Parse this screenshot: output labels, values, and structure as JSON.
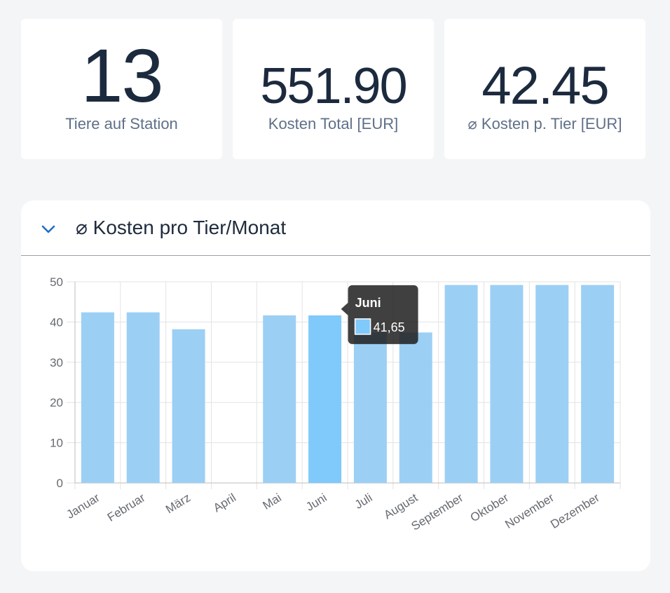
{
  "stats": [
    {
      "value": "13",
      "label": "Tiere auf Station"
    },
    {
      "value": "551.90",
      "label": "Kosten Total [EUR]"
    },
    {
      "value": "42.45",
      "label": "⌀ Kosten p. Tier [EUR]"
    }
  ],
  "chart_panel": {
    "title": "⌀ Kosten pro Tier/Monat",
    "expanded": true
  },
  "tooltip": {
    "category": "Juni",
    "value": "41,65"
  },
  "colors": {
    "bar": "#9ccff4",
    "bar_highlight": "#80c9fb",
    "tooltip_bg": "#1e1e1e",
    "accent": "#1f6fc4"
  },
  "chart_data": {
    "type": "bar",
    "title": "",
    "xlabel": "",
    "ylabel": "",
    "categories": [
      "Januar",
      "Februar",
      "März",
      "April",
      "Mai",
      "Juni",
      "Juli",
      "August",
      "September",
      "Oktober",
      "November",
      "Dezember"
    ],
    "values": [
      42.4,
      42.4,
      38.2,
      0,
      41.65,
      41.65,
      37.4,
      37.4,
      49.2,
      49.2,
      49.2,
      49.2
    ],
    "ylim": [
      0,
      50
    ],
    "yticks": [
      0,
      10,
      20,
      30,
      40,
      50
    ],
    "grid": true,
    "highlighted_index": 5
  }
}
